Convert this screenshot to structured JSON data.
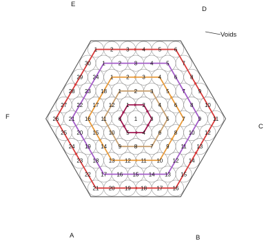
{
  "vertices": {
    "A": "A",
    "B": "B",
    "C": "C",
    "D": "D",
    "E": "E",
    "F": "F"
  },
  "annotation": "Voids",
  "rings": [
    {
      "ring": 0,
      "color": "#7a1030"
    },
    {
      "ring": 1,
      "color": "#a01850"
    },
    {
      "ring": 2,
      "color": "#c8a070"
    },
    {
      "ring": 3,
      "color": "#e89a3a"
    },
    {
      "ring": 4,
      "color": "#a35bc8"
    },
    {
      "ring": 5,
      "color": "#d83a3a"
    }
  ]
}
